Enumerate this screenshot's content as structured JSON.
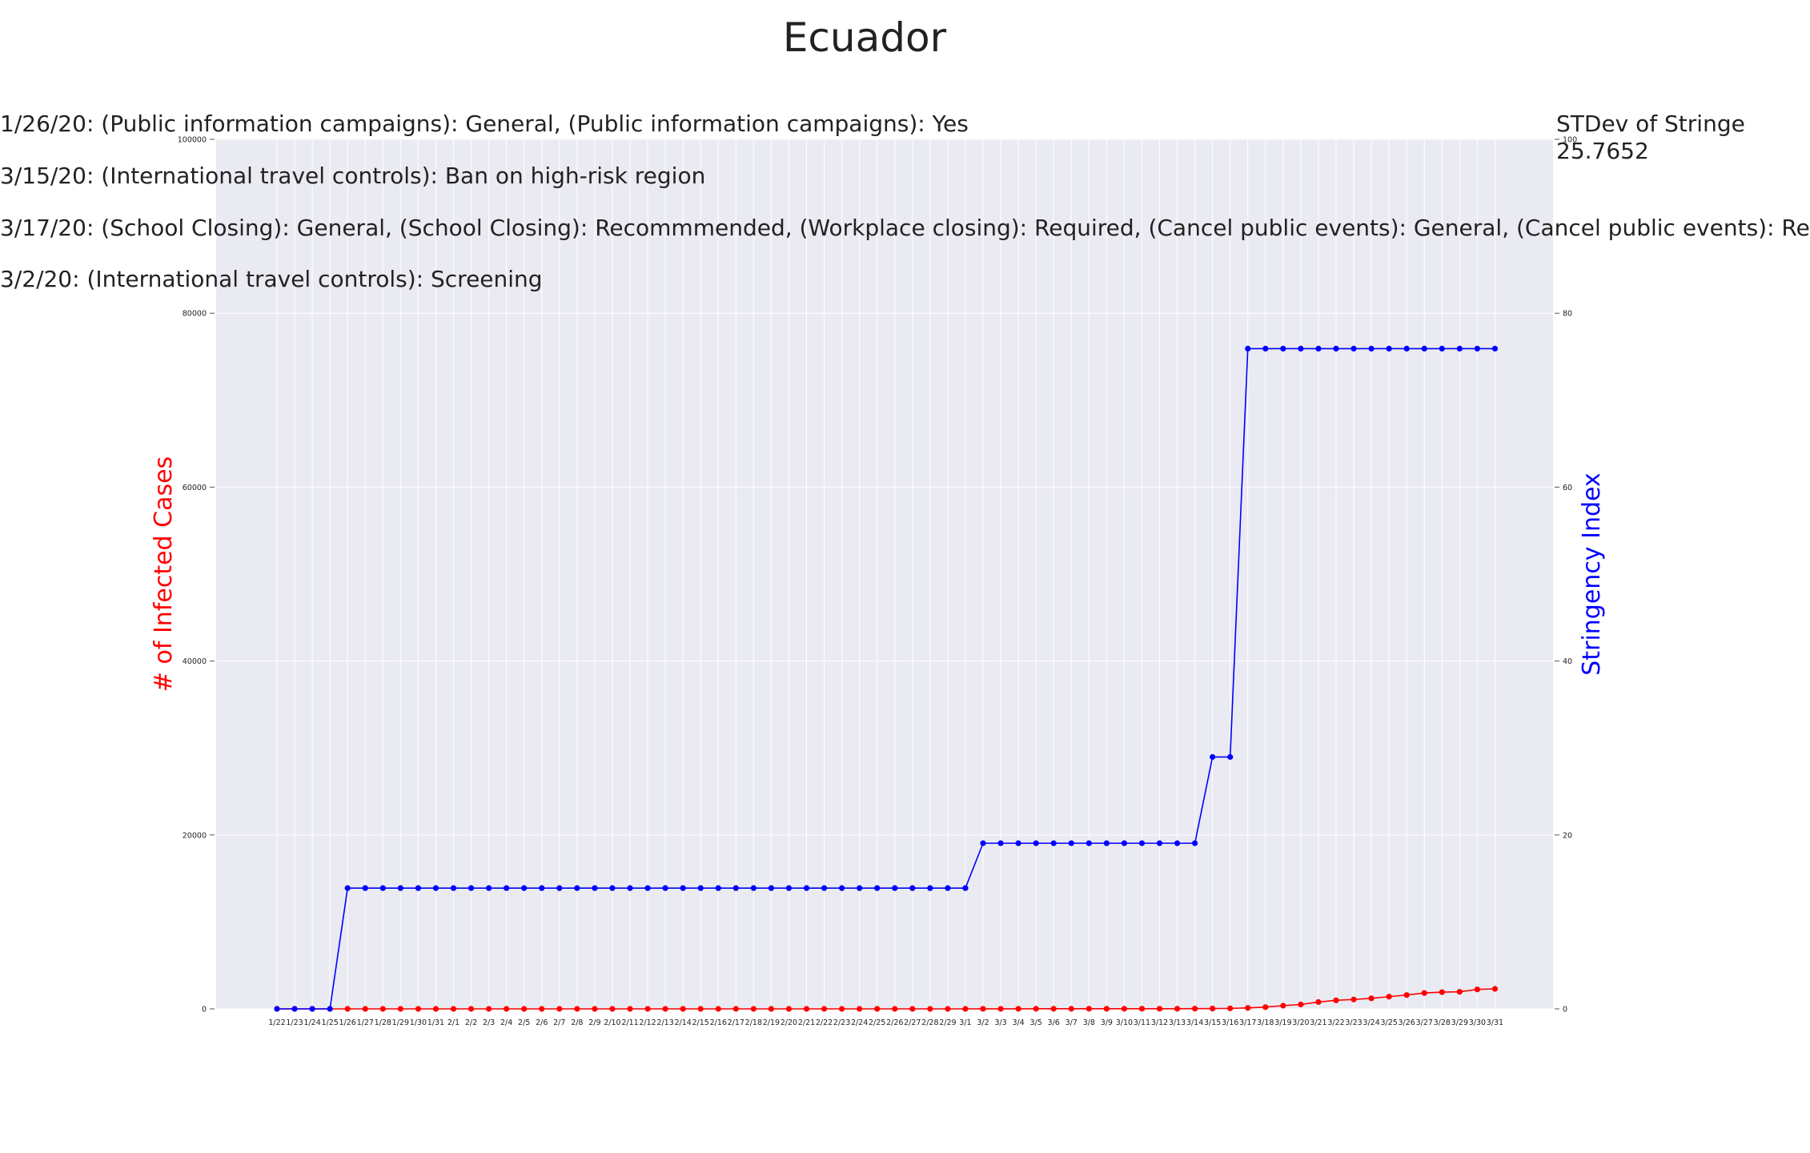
{
  "title": "Ecuador",
  "annotations": [
    "1/26/20: (Public information campaigns): General, (Public information campaigns): Yes",
    "3/15/20: (International travel controls): Ban on high-risk region",
    "3/17/20: (School Closing): General, (School Closing): Recommmended, (Workplace closing): Required, (Cancel public events): General, (Cancel public events): Re",
    "3/2/20: (International travel controls): Screening"
  ],
  "stdev": {
    "label": "STDev of Stringe",
    "value": "25.7652"
  },
  "colors": {
    "cases": "#ff0000",
    "stringency": "#0000ff",
    "plot_bg": "#eaeaf2",
    "grid": "#ffffff"
  },
  "chart_data": {
    "type": "line",
    "title": "Ecuador",
    "grid": true,
    "x": [
      "1/22",
      "1/23",
      "1/24",
      "1/25",
      "1/26",
      "1/27",
      "1/28",
      "1/29",
      "1/30",
      "1/31",
      "2/1",
      "2/2",
      "2/3",
      "2/4",
      "2/5",
      "2/6",
      "2/7",
      "2/8",
      "2/9",
      "2/10",
      "2/11",
      "2/12",
      "2/13",
      "2/14",
      "2/15",
      "2/16",
      "2/17",
      "2/18",
      "2/19",
      "2/20",
      "2/21",
      "2/22",
      "2/23",
      "2/24",
      "2/25",
      "2/26",
      "2/27",
      "2/28",
      "2/29",
      "3/1",
      "3/2",
      "3/3",
      "3/4",
      "3/5",
      "3/6",
      "3/7",
      "3/8",
      "3/9",
      "3/10",
      "3/11",
      "3/12",
      "3/13",
      "3/14",
      "3/15",
      "3/16",
      "3/17",
      "3/18",
      "3/19",
      "3/20",
      "3/21",
      "3/22",
      "3/23",
      "3/24",
      "3/25",
      "3/26",
      "3/27",
      "3/28",
      "3/29",
      "3/30",
      "3/31"
    ],
    "y_left": {
      "label": "# of Infected Cases",
      "lim": [
        0,
        100000
      ],
      "ticks": [
        0,
        20000,
        40000,
        60000,
        80000,
        100000
      ]
    },
    "y_right": {
      "label": "Stringency Index",
      "lim": [
        0,
        100
      ],
      "ticks": [
        0,
        20,
        40,
        60,
        80,
        100
      ]
    },
    "series": [
      {
        "axis": "left",
        "values": [
          0,
          0,
          0,
          0,
          0,
          0,
          0,
          0,
          0,
          0,
          0,
          0,
          0,
          0,
          0,
          0,
          0,
          0,
          0,
          0,
          0,
          0,
          0,
          0,
          0,
          0,
          0,
          0,
          0,
          0,
          0,
          0,
          0,
          0,
          0,
          0,
          0,
          0,
          1,
          1,
          6,
          7,
          10,
          13,
          13,
          13,
          14,
          15,
          15,
          17,
          17,
          17,
          28,
          37,
          58,
          111,
          199,
          367,
          506,
          789,
          981,
          1082,
          1211,
          1403,
          1595,
          1823,
          1924,
          1962,
          2240,
          2302
        ]
      },
      {
        "axis": "right",
        "values": [
          0,
          0,
          0,
          0,
          13.89,
          13.89,
          13.89,
          13.89,
          13.89,
          13.89,
          13.89,
          13.89,
          13.89,
          13.89,
          13.89,
          13.89,
          13.89,
          13.89,
          13.89,
          13.89,
          13.89,
          13.89,
          13.89,
          13.89,
          13.89,
          13.89,
          13.89,
          13.89,
          13.89,
          13.89,
          13.89,
          13.89,
          13.89,
          13.89,
          13.89,
          13.89,
          13.89,
          13.89,
          13.89,
          13.89,
          19.05,
          19.05,
          19.05,
          19.05,
          19.05,
          19.05,
          19.05,
          19.05,
          19.05,
          19.05,
          19.05,
          19.05,
          19.05,
          28.97,
          28.97,
          75.93,
          75.93,
          75.93,
          75.93,
          75.93,
          75.93,
          75.93,
          75.93,
          75.93,
          75.93,
          75.93,
          75.93,
          75.93,
          75.93,
          75.93
        ]
      }
    ]
  }
}
